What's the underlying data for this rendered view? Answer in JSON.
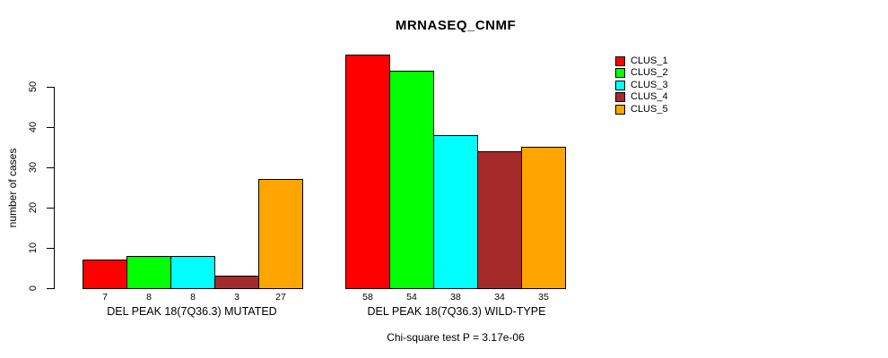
{
  "chart_data": {
    "type": "bar",
    "title": "MRNASEQ_CNMF",
    "ylabel": "number of cases",
    "xlabel": "",
    "grid": false,
    "legend_position": "right",
    "ylim": [
      0,
      58
    ],
    "yticks": [
      0,
      10,
      20,
      30,
      40,
      50
    ],
    "categories": [
      "DEL PEAK 18(7Q36.3) MUTATED",
      "DEL PEAK 18(7Q36.3) WILD-TYPE"
    ],
    "series": [
      {
        "name": "CLUS_1",
        "color": "#FF0000",
        "values": [
          7,
          58
        ]
      },
      {
        "name": "CLUS_2",
        "color": "#00FF00",
        "values": [
          8,
          54
        ]
      },
      {
        "name": "CLUS_3",
        "color": "#00FFFF",
        "values": [
          8,
          38
        ]
      },
      {
        "name": "CLUS_4",
        "color": "#A52A2A",
        "values": [
          3,
          34
        ]
      },
      {
        "name": "CLUS_5",
        "color": "#FFA500",
        "values": [
          27,
          35
        ]
      }
    ],
    "bar_value_labels": [
      [
        "7",
        "8",
        "8",
        "3",
        "27"
      ],
      [
        "58",
        "54",
        "38",
        "34",
        "35"
      ]
    ],
    "annotation": "Chi-square test P = 3.17e-06"
  },
  "legend": {
    "items": [
      {
        "label": "CLUS_1",
        "color": "#FF0000"
      },
      {
        "label": "CLUS_2",
        "color": "#00FF00"
      },
      {
        "label": "CLUS_3",
        "color": "#00FFFF"
      },
      {
        "label": "CLUS_4",
        "color": "#A52A2A"
      },
      {
        "label": "CLUS_5",
        "color": "#FFA500"
      }
    ]
  },
  "colors": {
    "background": "#FFFFFF",
    "axis": "#000000",
    "text": "#000000"
  }
}
